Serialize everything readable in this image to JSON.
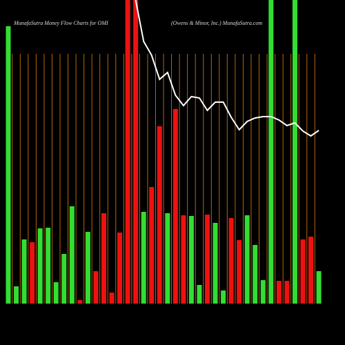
{
  "chart_data": {
    "type": "bar",
    "title": "MunafaSutra  Money Flow  Charts for OMI",
    "subtitle": "(Owens & Minor,  Inc.) MunafaSutra.com",
    "ylim": [
      0,
      440
    ],
    "values": [
      402,
      25,
      93,
      89,
      109,
      110,
      31,
      72,
      141,
      5,
      104,
      47,
      131,
      16,
      103,
      440,
      440,
      133,
      169,
      257,
      131,
      282,
      128,
      127,
      27,
      129,
      117,
      19,
      124,
      92,
      128,
      85,
      34,
      440,
      33,
      33,
      440,
      93,
      97,
      47
    ],
    "colors": [
      "#33dd33",
      "#33dd33",
      "#33dd33",
      "#ee1111",
      "#33dd33",
      "#33dd33",
      "#33dd33",
      "#33dd33",
      "#33dd33",
      "#ee1111",
      "#33dd33",
      "#ee1111",
      "#ee1111",
      "#ee1111",
      "#ee1111",
      "#ee1111",
      "#ee1111",
      "#33dd33",
      "#ee1111",
      "#ee1111",
      "#33dd33",
      "#ee1111",
      "#ee1111",
      "#33dd33",
      "#33dd33",
      "#ee1111",
      "#33dd33",
      "#33dd33",
      "#ee1111",
      "#ee1111",
      "#33dd33",
      "#33dd33",
      "#33dd33",
      "#33dd33",
      "#ee1111",
      "#ee1111",
      "#33dd33",
      "#ee1111",
      "#ee1111",
      "#33dd33"
    ],
    "line": {
      "color": "#ffffff",
      "values": [
        null,
        null,
        null,
        null,
        null,
        null,
        null,
        null,
        null,
        null,
        null,
        null,
        null,
        null,
        null,
        null,
        440,
        380,
        360,
        325,
        335,
        302,
        287,
        300,
        298,
        280,
        292,
        292,
        270,
        252,
        264,
        269,
        271,
        271,
        266,
        258,
        262,
        250,
        243,
        251
      ]
    }
  }
}
